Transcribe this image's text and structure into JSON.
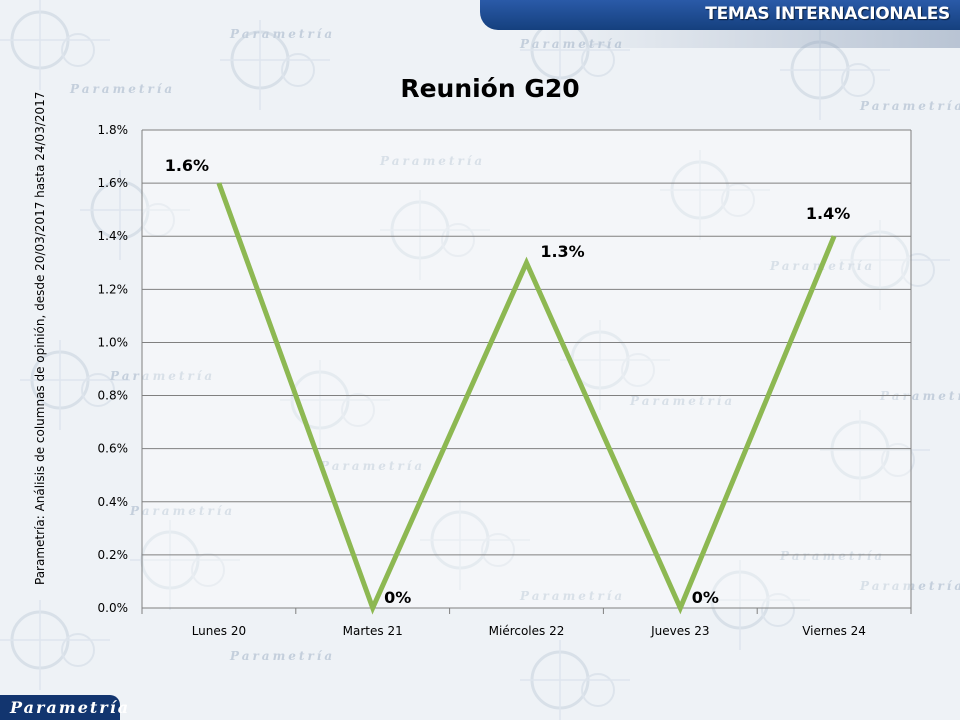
{
  "header": {
    "title": "TEMAS INTERNACIONALES"
  },
  "footer": {
    "logo": "Parametría"
  },
  "watermark": "Parametría",
  "source_note": "Parametría: Análisis de columnas de opinión, desde 20/03/2017  hasta  24/03/2017",
  "colors": {
    "line": "#8db852",
    "header": "#1f4d94",
    "grid": "#808080"
  },
  "chart_data": {
    "type": "line",
    "title": "Reunión G20",
    "categories": [
      "Lunes 20",
      "Martes 21",
      "Miércoles 22",
      "Jueves 23",
      "Viernes 24"
    ],
    "series": [
      {
        "values": [
          1.6,
          0,
          1.3,
          0,
          1.4
        ],
        "labels": [
          "1.6%",
          "0%",
          "1.3%",
          "0%",
          "1.4%"
        ]
      }
    ],
    "ylim": [
      0,
      1.8
    ],
    "y_ticks": [
      "0.0%",
      "0.2%",
      "0.4%",
      "0.6%",
      "0.8%",
      "1.0%",
      "1.2%",
      "1.4%",
      "1.6%",
      "1.8%"
    ],
    "y_tick_values": [
      0,
      0.2,
      0.4,
      0.6,
      0.8,
      1.0,
      1.2,
      1.4,
      1.6,
      1.8
    ],
    "grid": true,
    "legend": "none"
  }
}
